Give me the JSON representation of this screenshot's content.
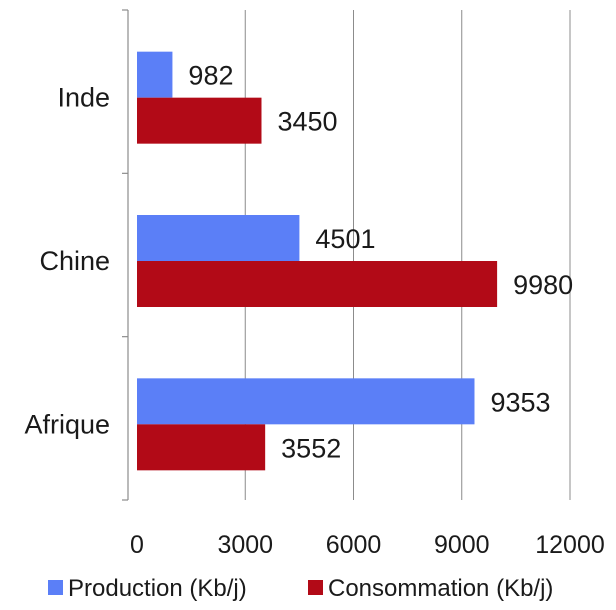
{
  "chart_data": {
    "type": "bar",
    "orientation": "horizontal",
    "categories": [
      "Inde",
      "Chine",
      "Afrique"
    ],
    "series": [
      {
        "name": "Production (Kb/j)",
        "values": [
          982,
          4501,
          9353
        ],
        "color": "#5B7FF7"
      },
      {
        "name": "Consommation (Kb/j)",
        "values": [
          3450,
          9980,
          3552
        ],
        "color": "#B20A17"
      }
    ],
    "xlim": [
      0,
      12000
    ],
    "xticks": [
      "0",
      "3000",
      "6000",
      "9000",
      "12000"
    ],
    "grid": true,
    "legend": "bottom",
    "data_labels": true
  }
}
